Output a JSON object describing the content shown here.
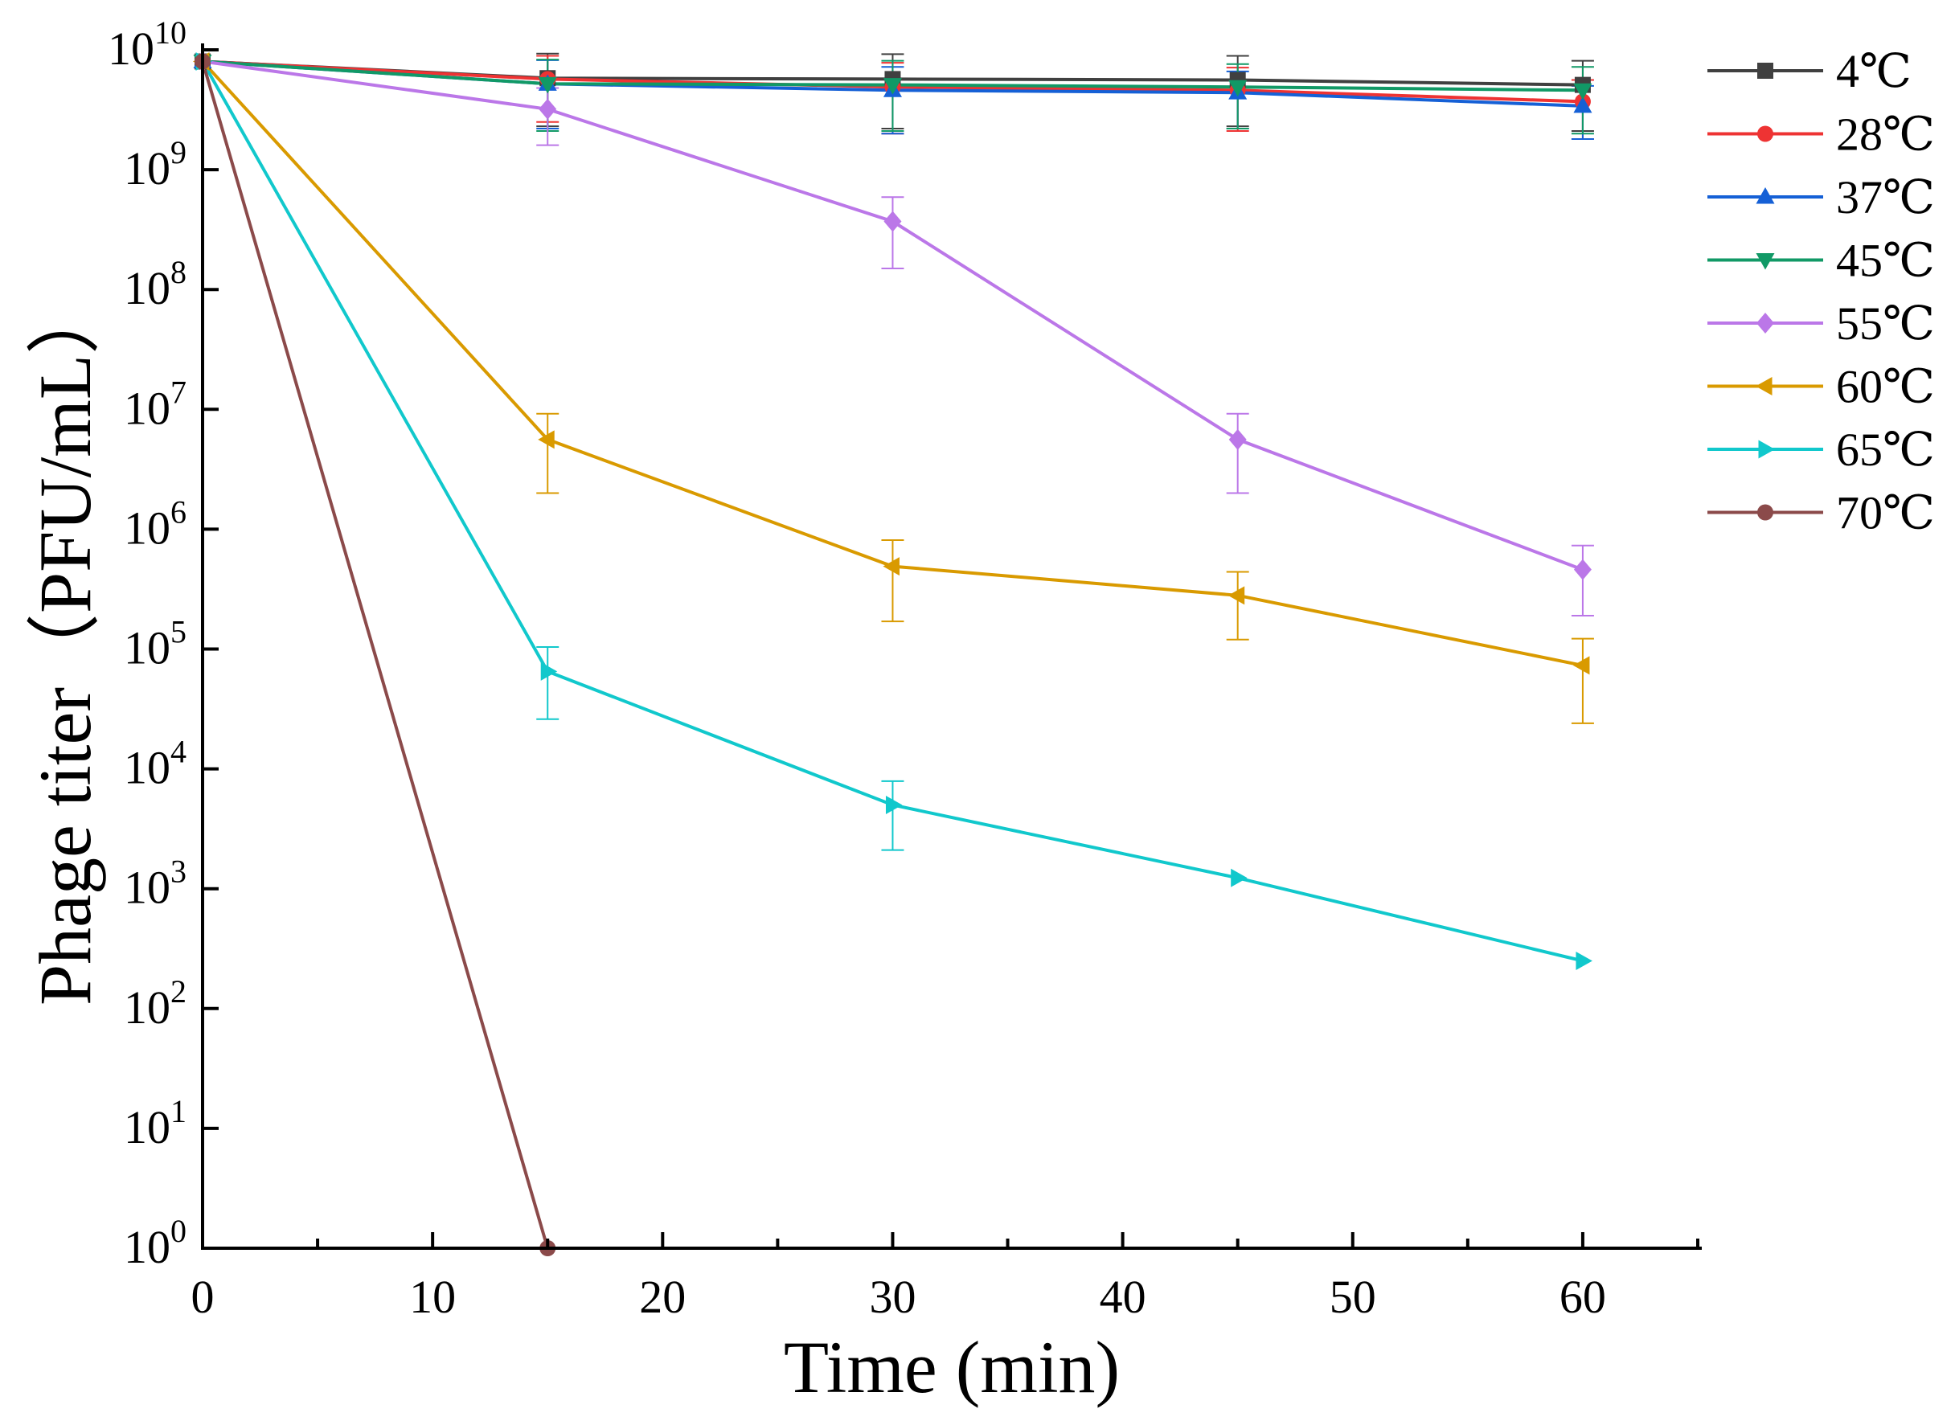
{
  "chart_data": {
    "type": "line",
    "xlabel": "Time (min)",
    "ylabel": "Phage titer（PFU/mL）",
    "yscale": "log",
    "xlim": [
      0,
      65
    ],
    "ylim": [
      1,
      10000000000
    ],
    "x_ticks": [
      0,
      10,
      20,
      30,
      40,
      50,
      60
    ],
    "x_minor_ticks": [
      5,
      15,
      25,
      35,
      45,
      55,
      65
    ],
    "y_tick_base": "10",
    "y_tick_exponents": [
      "0",
      "1",
      "2",
      "3",
      "4",
      "5",
      "6",
      "7",
      "8",
      "9",
      "10"
    ],
    "legend_position": "top-right",
    "series": [
      {
        "name": "4℃",
        "color": "#404040",
        "marker": "square",
        "x": [
          0,
          15,
          30,
          45,
          60
        ],
        "y": [
          8000000000,
          5800000000,
          5700000000,
          5600000000,
          5100000000
        ],
        "err": [
          0,
          3500000000,
          3500000000,
          3300000000,
          3000000000
        ]
      },
      {
        "name": "28℃",
        "color": "#ee3333",
        "marker": "circle",
        "x": [
          0,
          15,
          30,
          45,
          60
        ],
        "y": [
          8000000000,
          5700000000,
          4900000000,
          4600000000,
          3700000000
        ],
        "err": [
          0,
          3200000000,
          2900000000,
          2500000000,
          1900000000
        ]
      },
      {
        "name": "37℃",
        "color": "#1560d6",
        "marker": "triangle-up",
        "x": [
          0,
          15,
          30,
          45,
          60
        ],
        "y": [
          8000000000,
          5200000000,
          4600000000,
          4400000000,
          3400000000
        ],
        "err": [
          0,
          3000000000,
          2600000000,
          2200000000,
          1600000000
        ]
      },
      {
        "name": "45℃",
        "color": "#119966",
        "marker": "triangle-down",
        "x": [
          0,
          15,
          30,
          45,
          60
        ],
        "y": [
          8000000000,
          5200000000,
          5100000000,
          4900000000,
          4600000000
        ],
        "err": [
          0,
          3100000000,
          3000000000,
          2700000000,
          2600000000
        ]
      },
      {
        "name": "55℃",
        "color": "#bb77e8",
        "marker": "diamond",
        "x": [
          0,
          15,
          30,
          45,
          60
        ],
        "y": [
          8000000000,
          3200000000,
          370000000,
          5600000,
          460000
        ],
        "err": [
          0,
          1600000000,
          220000000,
          3600000,
          270000
        ]
      },
      {
        "name": "60℃",
        "color": "#d99a00",
        "marker": "triangle-left",
        "x": [
          0,
          15,
          30,
          45,
          60
        ],
        "y": [
          8000000000,
          5600000,
          490000,
          280000,
          73000
        ],
        "err": [
          0,
          3600000,
          320000,
          160000,
          49000
        ]
      },
      {
        "name": "65℃",
        "color": "#11c8cc",
        "marker": "triangle-right",
        "x": [
          0,
          15,
          30,
          45,
          60
        ],
        "y": [
          8000000000,
          65000,
          5000,
          1230,
          250
        ],
        "err": [
          0,
          39000,
          2900,
          0,
          0
        ]
      },
      {
        "name": "70℃",
        "color": "#8b4a4a",
        "marker": "circle",
        "x": [
          0,
          15
        ],
        "y": [
          8000000000,
          1
        ],
        "err": [
          0,
          0
        ]
      }
    ]
  }
}
